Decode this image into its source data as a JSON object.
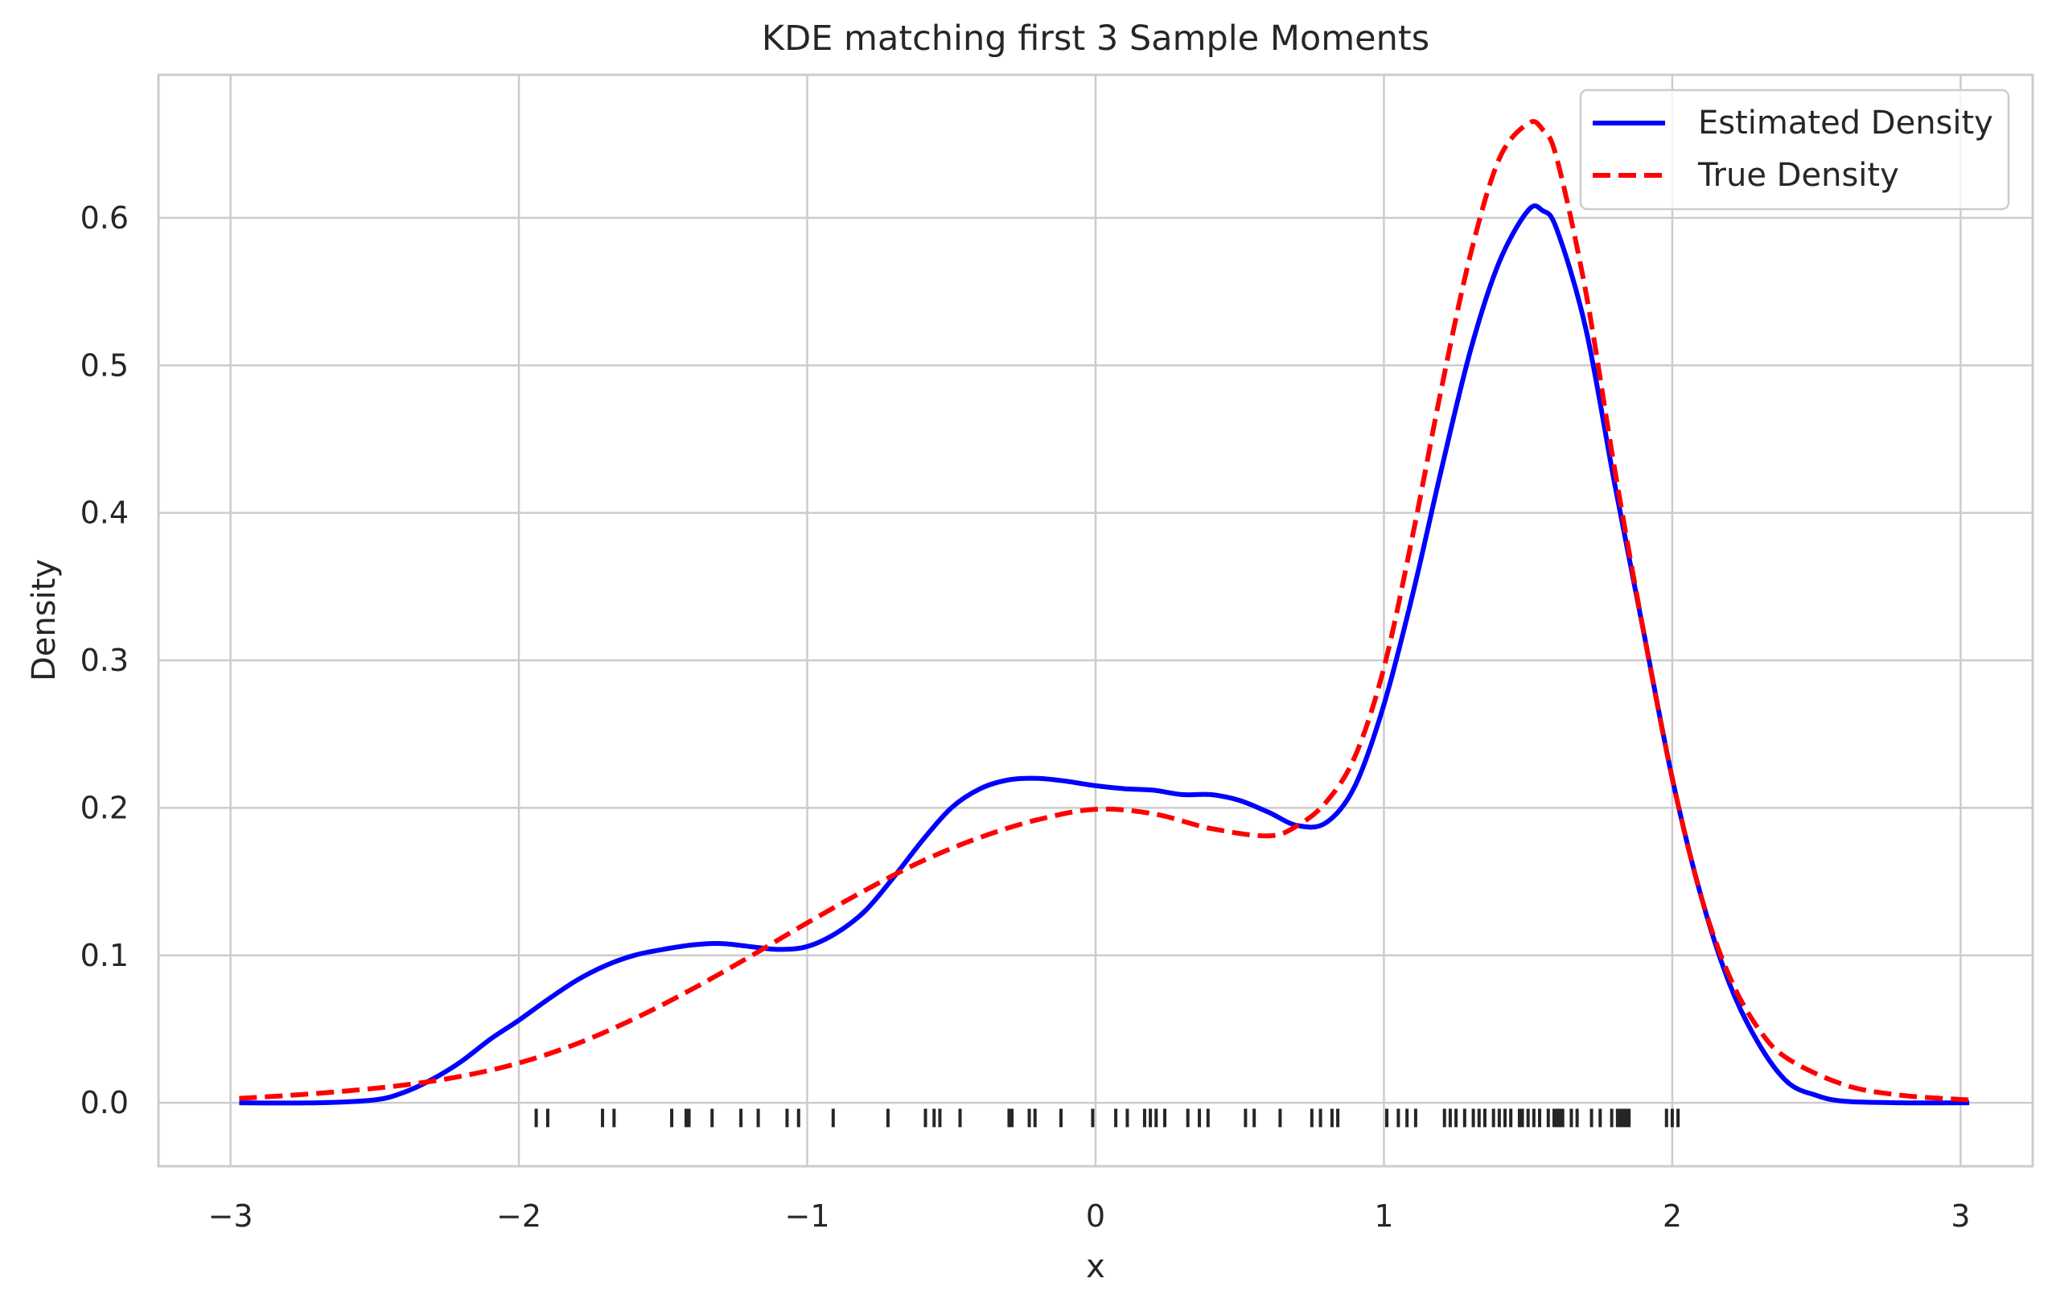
{
  "chart_data": {
    "type": "line",
    "title": "KDE matching first 3 Sample Moments",
    "xlabel": "x",
    "ylabel": "Density",
    "xlim": [
      -3.25,
      3.25
    ],
    "ylim": [
      -0.043,
      0.697
    ],
    "xticks": [
      -3,
      -2,
      -1,
      0,
      1,
      2,
      3
    ],
    "xtick_labels": [
      "−3",
      "−2",
      "−1",
      "0",
      "1",
      "2",
      "3"
    ],
    "yticks": [
      0.0,
      0.1,
      0.2,
      0.3,
      0.4,
      0.5,
      0.6
    ],
    "ytick_labels": [
      "0.0",
      "0.1",
      "0.2",
      "0.3",
      "0.4",
      "0.5",
      "0.6"
    ],
    "grid": true,
    "legend_position": "top-right",
    "series": [
      {
        "name": "Estimated Density",
        "color": "#0000ff",
        "linestyle": "solid",
        "points": [
          [
            -2.97,
            0.0
          ],
          [
            -2.7,
            0.0
          ],
          [
            -2.5,
            0.002
          ],
          [
            -2.4,
            0.007
          ],
          [
            -2.3,
            0.016
          ],
          [
            -2.2,
            0.028
          ],
          [
            -2.1,
            0.043
          ],
          [
            -2.0,
            0.056
          ],
          [
            -1.9,
            0.07
          ],
          [
            -1.8,
            0.083
          ],
          [
            -1.7,
            0.093
          ],
          [
            -1.6,
            0.1
          ],
          [
            -1.5,
            0.104
          ],
          [
            -1.4,
            0.107
          ],
          [
            -1.3,
            0.108
          ],
          [
            -1.2,
            0.106
          ],
          [
            -1.1,
            0.104
          ],
          [
            -1.0,
            0.106
          ],
          [
            -0.9,
            0.115
          ],
          [
            -0.8,
            0.13
          ],
          [
            -0.7,
            0.153
          ],
          [
            -0.6,
            0.178
          ],
          [
            -0.5,
            0.2
          ],
          [
            -0.4,
            0.213
          ],
          [
            -0.3,
            0.219
          ],
          [
            -0.2,
            0.22
          ],
          [
            -0.1,
            0.218
          ],
          [
            0.0,
            0.215
          ],
          [
            0.1,
            0.213
          ],
          [
            0.2,
            0.212
          ],
          [
            0.3,
            0.209
          ],
          [
            0.4,
            0.209
          ],
          [
            0.5,
            0.205
          ],
          [
            0.6,
            0.197
          ],
          [
            0.7,
            0.188
          ],
          [
            0.8,
            0.19
          ],
          [
            0.9,
            0.215
          ],
          [
            1.0,
            0.27
          ],
          [
            1.1,
            0.345
          ],
          [
            1.2,
            0.43
          ],
          [
            1.3,
            0.51
          ],
          [
            1.4,
            0.57
          ],
          [
            1.5,
            0.605
          ],
          [
            1.55,
            0.605
          ],
          [
            1.6,
            0.592
          ],
          [
            1.7,
            0.525
          ],
          [
            1.8,
            0.42
          ],
          [
            1.9,
            0.32
          ],
          [
            2.0,
            0.22
          ],
          [
            2.1,
            0.14
          ],
          [
            2.2,
            0.08
          ],
          [
            2.3,
            0.04
          ],
          [
            2.4,
            0.014
          ],
          [
            2.5,
            0.005
          ],
          [
            2.6,
            0.001
          ],
          [
            2.8,
            0.0
          ],
          [
            3.03,
            0.0
          ]
        ]
      },
      {
        "name": "True Density",
        "color": "#ff0000",
        "linestyle": "dashed",
        "points": [
          [
            -2.97,
            0.003
          ],
          [
            -2.8,
            0.005
          ],
          [
            -2.6,
            0.008
          ],
          [
            -2.4,
            0.012
          ],
          [
            -2.2,
            0.018
          ],
          [
            -2.0,
            0.027
          ],
          [
            -1.8,
            0.04
          ],
          [
            -1.6,
            0.057
          ],
          [
            -1.4,
            0.077
          ],
          [
            -1.2,
            0.099
          ],
          [
            -1.0,
            0.122
          ],
          [
            -0.8,
            0.144
          ],
          [
            -0.6,
            0.164
          ],
          [
            -0.4,
            0.18
          ],
          [
            -0.2,
            0.192
          ],
          [
            0.0,
            0.199
          ],
          [
            0.2,
            0.196
          ],
          [
            0.4,
            0.186
          ],
          [
            0.6,
            0.181
          ],
          [
            0.7,
            0.188
          ],
          [
            0.8,
            0.204
          ],
          [
            0.9,
            0.235
          ],
          [
            1.0,
            0.295
          ],
          [
            1.1,
            0.385
          ],
          [
            1.2,
            0.485
          ],
          [
            1.3,
            0.575
          ],
          [
            1.4,
            0.64
          ],
          [
            1.5,
            0.664
          ],
          [
            1.55,
            0.66
          ],
          [
            1.6,
            0.64
          ],
          [
            1.7,
            0.55
          ],
          [
            1.8,
            0.43
          ],
          [
            1.9,
            0.32
          ],
          [
            2.0,
            0.22
          ],
          [
            2.1,
            0.14
          ],
          [
            2.2,
            0.085
          ],
          [
            2.3,
            0.05
          ],
          [
            2.4,
            0.03
          ],
          [
            2.6,
            0.012
          ],
          [
            2.8,
            0.005
          ],
          [
            3.03,
            0.002
          ]
        ]
      }
    ],
    "rug": {
      "color": "#262626",
      "x": [
        -1.94,
        -1.9,
        -1.71,
        -1.67,
        -1.47,
        -1.42,
        -1.41,
        -1.33,
        -1.23,
        -1.17,
        -1.07,
        -1.03,
        -0.91,
        -0.72,
        -0.59,
        -0.56,
        -0.54,
        -0.47,
        -0.3,
        -0.29,
        -0.23,
        -0.21,
        -0.12,
        -0.01,
        0.07,
        0.11,
        0.17,
        0.19,
        0.21,
        0.24,
        0.32,
        0.36,
        0.39,
        0.52,
        0.55,
        0.64,
        0.75,
        0.78,
        0.82,
        0.84,
        1.01,
        1.05,
        1.08,
        1.11,
        1.21,
        1.23,
        1.25,
        1.28,
        1.31,
        1.33,
        1.35,
        1.38,
        1.4,
        1.42,
        1.44,
        1.47,
        1.48,
        1.5,
        1.52,
        1.54,
        1.57,
        1.59,
        1.6,
        1.61,
        1.62,
        1.65,
        1.67,
        1.72,
        1.75,
        1.79,
        1.81,
        1.82,
        1.83,
        1.84,
        1.85,
        1.98,
        2.0,
        2.02
      ]
    }
  }
}
